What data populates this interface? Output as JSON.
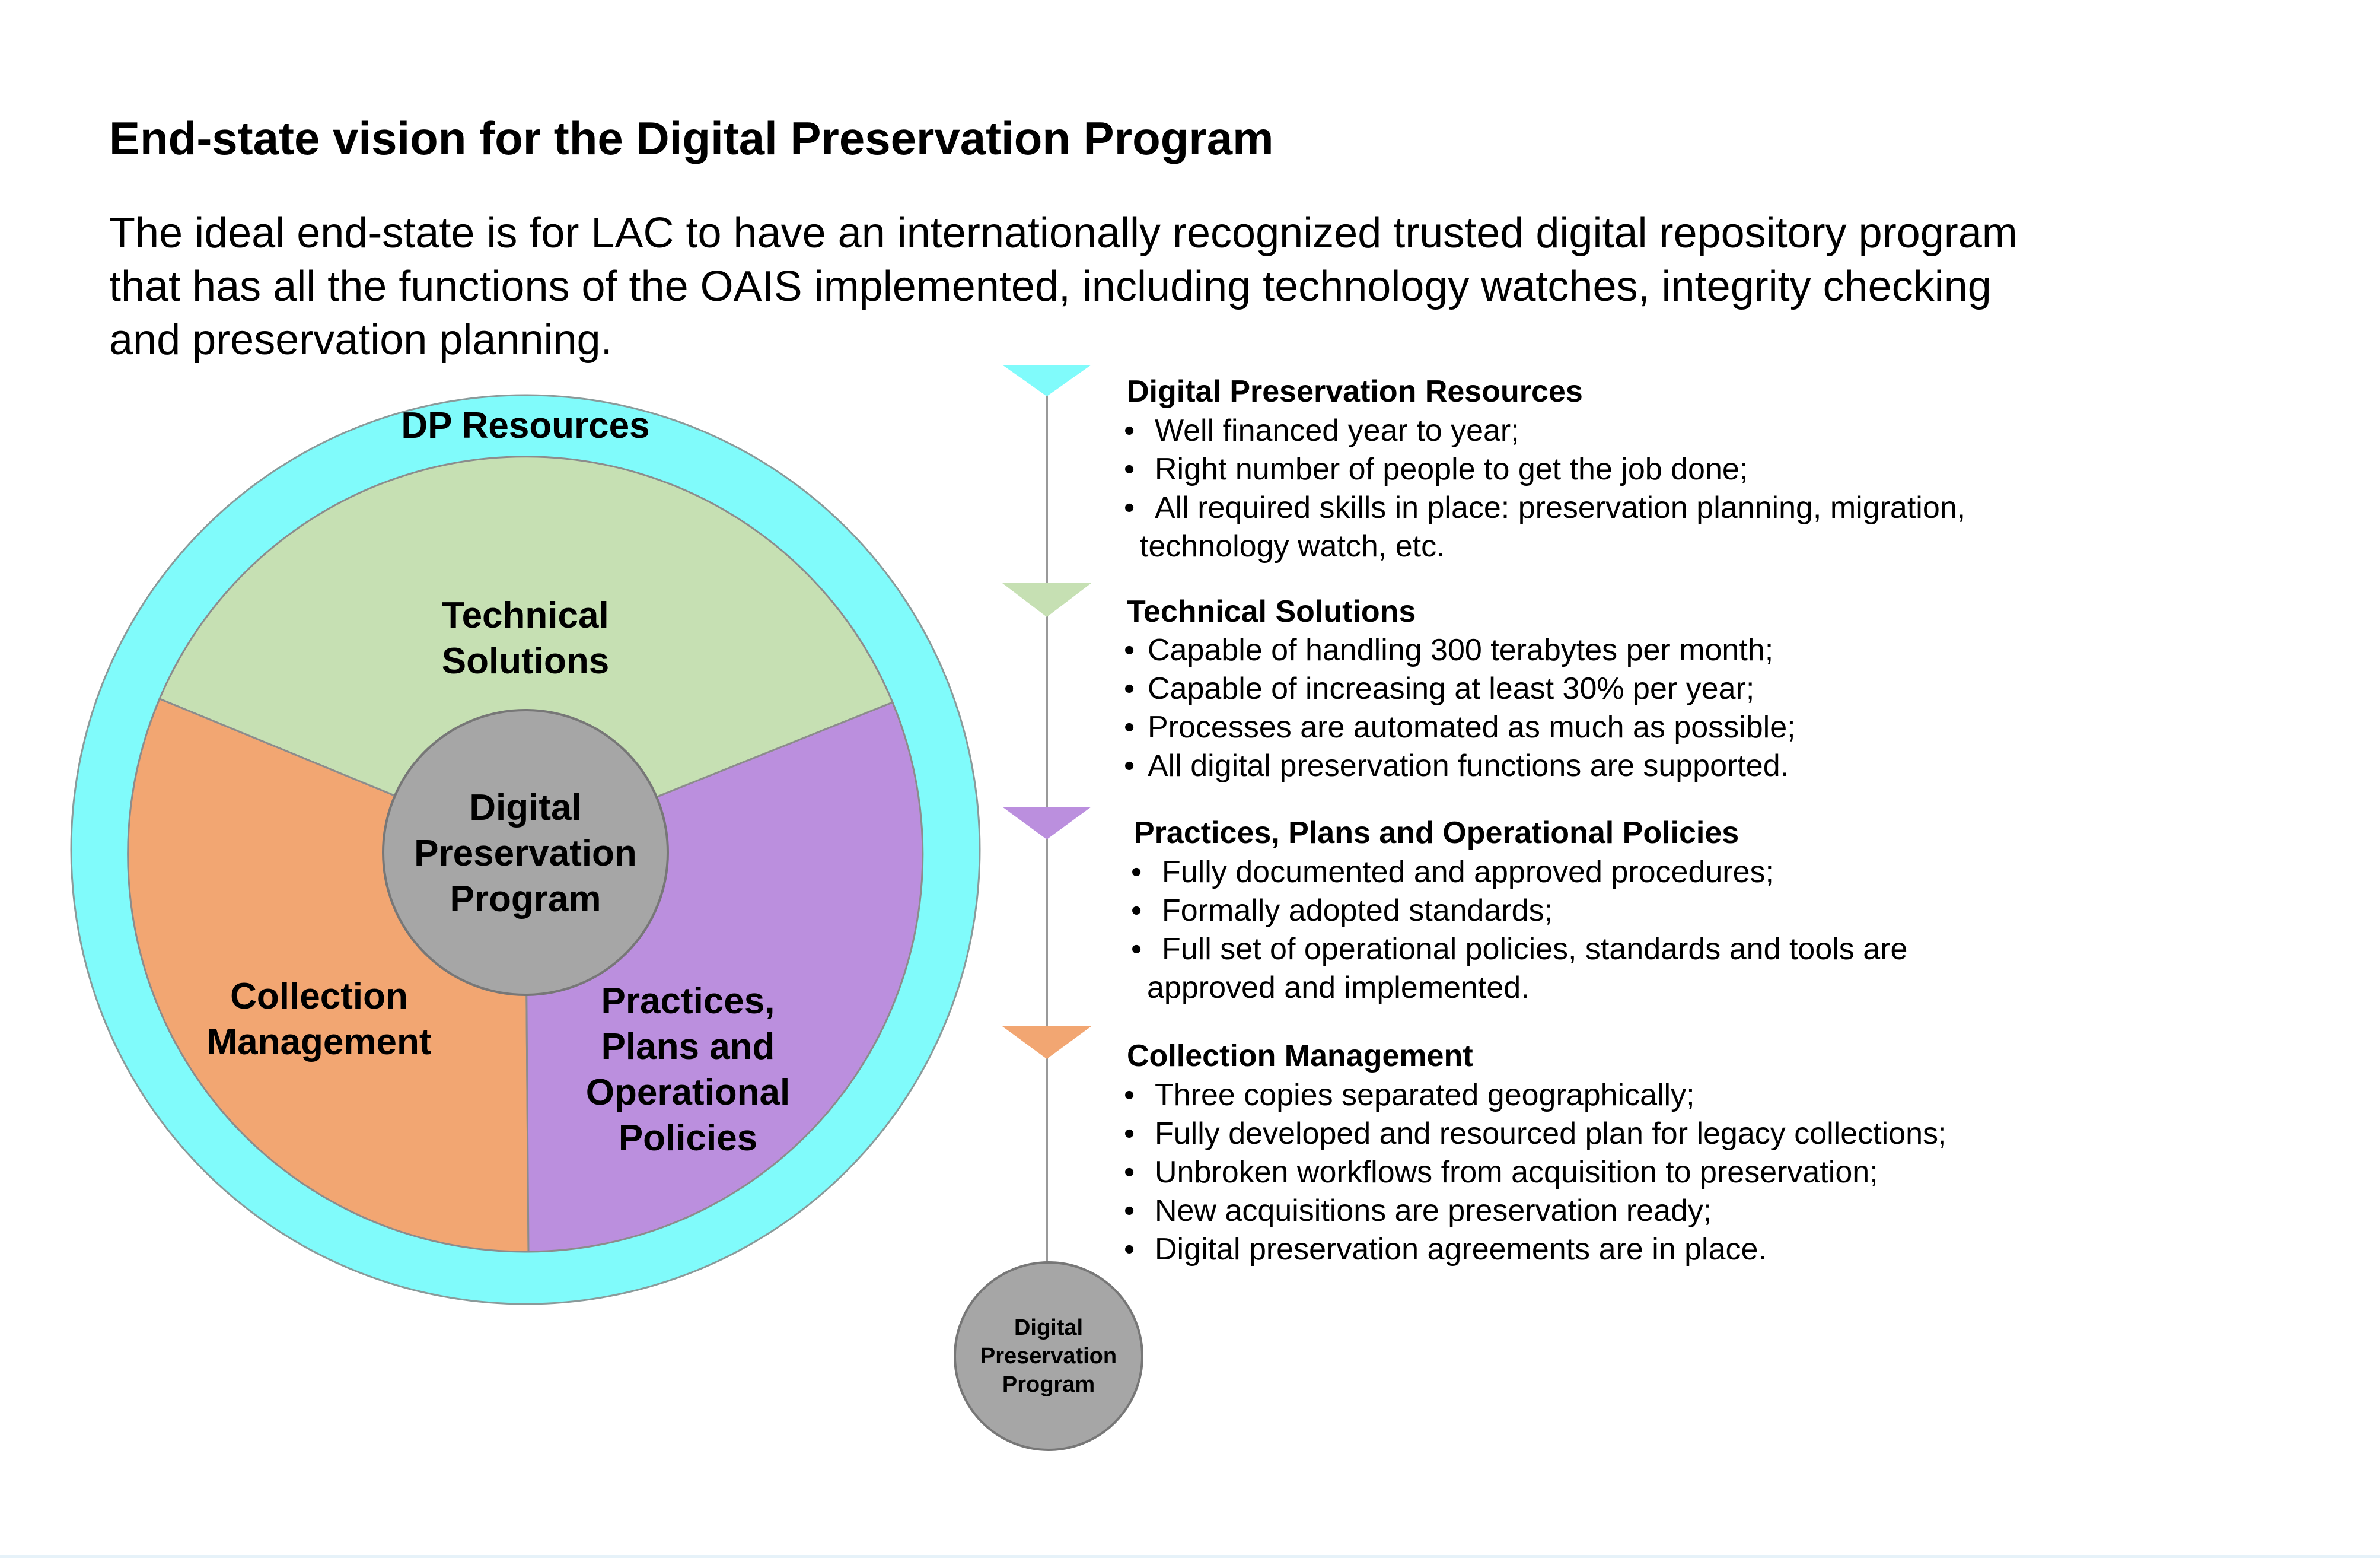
{
  "title": "End-state vision for the Digital Preservation Program",
  "intro_lines": [
    "The ideal end-state is for LAC to have an internationally recognized trusted digital repository program",
    "that has all the functions of the OAIS implemented, including technology watches, integrity checking",
    "and preservation planning."
  ],
  "colors": {
    "resources": "#80fbfb",
    "technical": "#c6e0b3",
    "practices": "#bb8fde",
    "collection": "#f2a672",
    "core": "#a6a6a6"
  },
  "circle_diagram": {
    "outer_label": "DP  Resources",
    "technical_lines": [
      "Technical",
      "Solutions"
    ],
    "collection_lines": [
      "Collection",
      "Management"
    ],
    "practices_lines": [
      "Practices,",
      "Plans and",
      "Operational",
      "Policies"
    ],
    "core_lines": [
      "Digital",
      "Preservation",
      "Program"
    ]
  },
  "timeline_end": {
    "lines": [
      "Digital",
      "Preservation",
      "Program"
    ]
  },
  "sections": [
    {
      "title": "Digital Preservation Resources",
      "bullets": [
        "Well financed year to year;",
        "Right number of people to get the job done;",
        "All required skills in place: preservation planning, migration,"
      ],
      "continuation": "technology watch, etc."
    },
    {
      "title": "Technical Solutions",
      "bullets": [
        "Capable of handling 300 terabytes per month;",
        "Capable of increasing at least 30% per year;",
        "Processes are automated as much as possible;",
        "All digital preservation functions are supported."
      ]
    },
    {
      "title": "Practices, Plans and Operational Policies",
      "bullets": [
        "Fully documented and approved procedures;",
        "Formally adopted standards;",
        "Full set of operational policies, standards and tools are"
      ],
      "continuation": "approved and implemented."
    },
    {
      "title": "Collection Management",
      "bullets": [
        "Three copies separated geographically;",
        "Fully developed and resourced plan for legacy collections;",
        "Unbroken workflows from acquisition to preservation;",
        "New acquisitions are preservation ready;",
        "Digital preservation agreements are in place."
      ]
    }
  ]
}
